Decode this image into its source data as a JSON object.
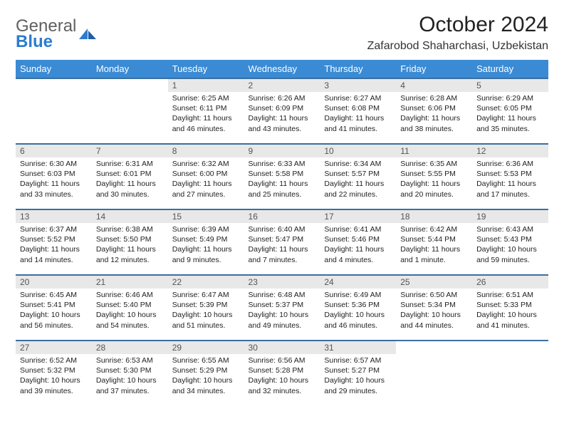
{
  "logo": {
    "word1": "General",
    "word2": "Blue"
  },
  "title": "October 2024",
  "location": "Zafarobod Shaharchasi, Uzbekistan",
  "colors": {
    "header_bg": "#3b8bd4",
    "header_text": "#ffffff",
    "row_divider": "#3b6fa0",
    "daynum_bg": "#e8e8e8",
    "daynum_text": "#555555",
    "text": "#222222",
    "logo_gray": "#606060",
    "logo_blue": "#2b7cd3"
  },
  "weekdays": [
    "Sunday",
    "Monday",
    "Tuesday",
    "Wednesday",
    "Thursday",
    "Friday",
    "Saturday"
  ],
  "weeks": [
    [
      null,
      null,
      {
        "n": "1",
        "sunrise": "6:25 AM",
        "sunset": "6:11 PM",
        "daylight": "11 hours and 46 minutes."
      },
      {
        "n": "2",
        "sunrise": "6:26 AM",
        "sunset": "6:09 PM",
        "daylight": "11 hours and 43 minutes."
      },
      {
        "n": "3",
        "sunrise": "6:27 AM",
        "sunset": "6:08 PM",
        "daylight": "11 hours and 41 minutes."
      },
      {
        "n": "4",
        "sunrise": "6:28 AM",
        "sunset": "6:06 PM",
        "daylight": "11 hours and 38 minutes."
      },
      {
        "n": "5",
        "sunrise": "6:29 AM",
        "sunset": "6:05 PM",
        "daylight": "11 hours and 35 minutes."
      }
    ],
    [
      {
        "n": "6",
        "sunrise": "6:30 AM",
        "sunset": "6:03 PM",
        "daylight": "11 hours and 33 minutes."
      },
      {
        "n": "7",
        "sunrise": "6:31 AM",
        "sunset": "6:01 PM",
        "daylight": "11 hours and 30 minutes."
      },
      {
        "n": "8",
        "sunrise": "6:32 AM",
        "sunset": "6:00 PM",
        "daylight": "11 hours and 27 minutes."
      },
      {
        "n": "9",
        "sunrise": "6:33 AM",
        "sunset": "5:58 PM",
        "daylight": "11 hours and 25 minutes."
      },
      {
        "n": "10",
        "sunrise": "6:34 AM",
        "sunset": "5:57 PM",
        "daylight": "11 hours and 22 minutes."
      },
      {
        "n": "11",
        "sunrise": "6:35 AM",
        "sunset": "5:55 PM",
        "daylight": "11 hours and 20 minutes."
      },
      {
        "n": "12",
        "sunrise": "6:36 AM",
        "sunset": "5:53 PM",
        "daylight": "11 hours and 17 minutes."
      }
    ],
    [
      {
        "n": "13",
        "sunrise": "6:37 AM",
        "sunset": "5:52 PM",
        "daylight": "11 hours and 14 minutes."
      },
      {
        "n": "14",
        "sunrise": "6:38 AM",
        "sunset": "5:50 PM",
        "daylight": "11 hours and 12 minutes."
      },
      {
        "n": "15",
        "sunrise": "6:39 AM",
        "sunset": "5:49 PM",
        "daylight": "11 hours and 9 minutes."
      },
      {
        "n": "16",
        "sunrise": "6:40 AM",
        "sunset": "5:47 PM",
        "daylight": "11 hours and 7 minutes."
      },
      {
        "n": "17",
        "sunrise": "6:41 AM",
        "sunset": "5:46 PM",
        "daylight": "11 hours and 4 minutes."
      },
      {
        "n": "18",
        "sunrise": "6:42 AM",
        "sunset": "5:44 PM",
        "daylight": "11 hours and 1 minute."
      },
      {
        "n": "19",
        "sunrise": "6:43 AM",
        "sunset": "5:43 PM",
        "daylight": "10 hours and 59 minutes."
      }
    ],
    [
      {
        "n": "20",
        "sunrise": "6:45 AM",
        "sunset": "5:41 PM",
        "daylight": "10 hours and 56 minutes."
      },
      {
        "n": "21",
        "sunrise": "6:46 AM",
        "sunset": "5:40 PM",
        "daylight": "10 hours and 54 minutes."
      },
      {
        "n": "22",
        "sunrise": "6:47 AM",
        "sunset": "5:39 PM",
        "daylight": "10 hours and 51 minutes."
      },
      {
        "n": "23",
        "sunrise": "6:48 AM",
        "sunset": "5:37 PM",
        "daylight": "10 hours and 49 minutes."
      },
      {
        "n": "24",
        "sunrise": "6:49 AM",
        "sunset": "5:36 PM",
        "daylight": "10 hours and 46 minutes."
      },
      {
        "n": "25",
        "sunrise": "6:50 AM",
        "sunset": "5:34 PM",
        "daylight": "10 hours and 44 minutes."
      },
      {
        "n": "26",
        "sunrise": "6:51 AM",
        "sunset": "5:33 PM",
        "daylight": "10 hours and 41 minutes."
      }
    ],
    [
      {
        "n": "27",
        "sunrise": "6:52 AM",
        "sunset": "5:32 PM",
        "daylight": "10 hours and 39 minutes."
      },
      {
        "n": "28",
        "sunrise": "6:53 AM",
        "sunset": "5:30 PM",
        "daylight": "10 hours and 37 minutes."
      },
      {
        "n": "29",
        "sunrise": "6:55 AM",
        "sunset": "5:29 PM",
        "daylight": "10 hours and 34 minutes."
      },
      {
        "n": "30",
        "sunrise": "6:56 AM",
        "sunset": "5:28 PM",
        "daylight": "10 hours and 32 minutes."
      },
      {
        "n": "31",
        "sunrise": "6:57 AM",
        "sunset": "5:27 PM",
        "daylight": "10 hours and 29 minutes."
      },
      null,
      null
    ]
  ],
  "labels": {
    "sunrise": "Sunrise:",
    "sunset": "Sunset:",
    "daylight": "Daylight:"
  }
}
